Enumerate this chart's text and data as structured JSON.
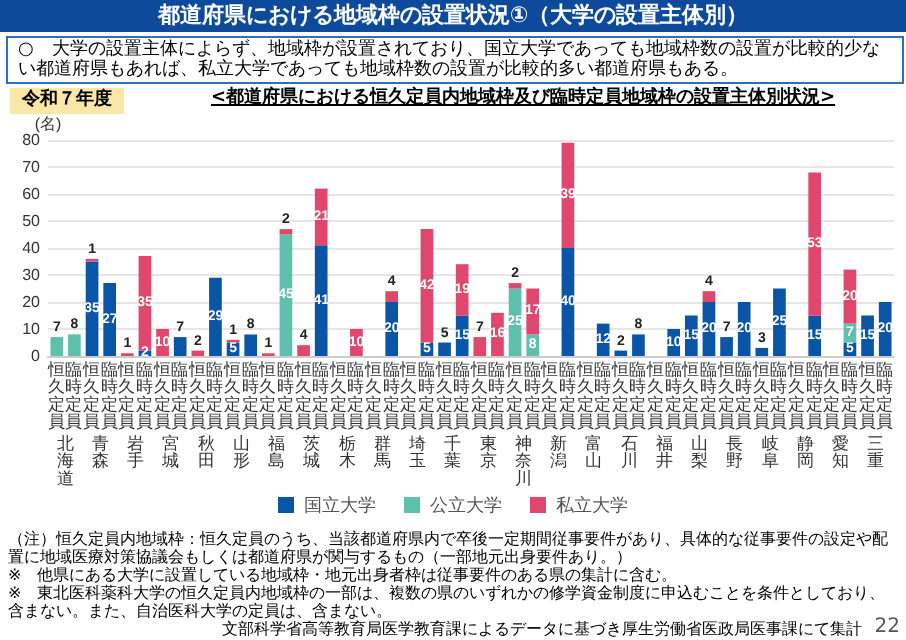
{
  "chart_data": {
    "type": "bar",
    "title": "都道府県における地域枠の設置状況①（大学の設置主体別）",
    "subtitle": "<都道府県における恒久定員内地域枠及び臨時定員地域枠の設置主体別状況>",
    "ylabel": "(名)",
    "categories": [
      "恒久定員",
      "臨時定員",
      "恒久定員",
      "臨時定員",
      "恒久定員",
      "臨時定員",
      "恒久定員",
      "臨時定員",
      "恒久定員",
      "臨時定員",
      "恒久定員",
      "臨時定員",
      "恒久定員",
      "臨時定員",
      "恒久定員",
      "臨時定員",
      "恒久定員",
      "臨時定員",
      "恒久定員",
      "臨時定員",
      "恒久定員",
      "臨時定員",
      "恒久定員",
      "臨時定員",
      "恒久定員",
      "臨時定員",
      "恒久定員",
      "臨時定員",
      "恒久定員",
      "臨時定員",
      "恒久定員",
      "臨時定員",
      "恒久定員",
      "臨時定員",
      "恒久定員",
      "臨時定員",
      "恒久定員",
      "臨時定員",
      "恒久定員",
      "臨時定員",
      "恒久定員",
      "臨時定員",
      "恒久定員",
      "臨時定員",
      "恒久定員",
      "臨時定員",
      "恒久定員",
      "臨時定員"
    ],
    "series": [
      {
        "name": "国立大学",
        "color": "#0b55a6",
        "values": [
          null,
          null,
          35,
          27,
          null,
          2,
          null,
          7,
          null,
          29,
          5,
          8,
          null,
          null,
          null,
          41,
          null,
          null,
          null,
          20,
          null,
          5,
          5,
          15,
          null,
          null,
          null,
          null,
          null,
          40,
          null,
          12,
          2,
          8,
          null,
          10,
          15,
          20,
          7,
          20,
          3,
          25,
          null,
          15,
          null,
          5,
          15,
          20
        ]
      },
      {
        "name": "公立大学",
        "color": "#5fbfad",
        "values": [
          7,
          8,
          null,
          null,
          null,
          null,
          null,
          null,
          null,
          null,
          null,
          null,
          null,
          45,
          null,
          null,
          null,
          null,
          null,
          null,
          null,
          null,
          null,
          null,
          null,
          null,
          25,
          8,
          null,
          null,
          null,
          null,
          null,
          null,
          null,
          null,
          null,
          null,
          null,
          null,
          null,
          null,
          null,
          null,
          null,
          7,
          null,
          null
        ]
      },
      {
        "name": "私立大学",
        "color": "#e0476d",
        "values": [
          null,
          null,
          1,
          null,
          1,
          35,
          10,
          null,
          2,
          null,
          1,
          null,
          1,
          2,
          4,
          21,
          null,
          10,
          null,
          4,
          null,
          42,
          null,
          19,
          7,
          16,
          2,
          17,
          null,
          39,
          null,
          null,
          null,
          null,
          null,
          null,
          null,
          4,
          null,
          null,
          null,
          null,
          null,
          53,
          null,
          20,
          null,
          null
        ]
      }
    ],
    "stacked": true,
    "data_labels": true,
    "ylim": [
      0,
      80
    ],
    "yticks": [
      0,
      10,
      20,
      30,
      40,
      50,
      60,
      70,
      80
    ],
    "grid": "y",
    "legend": "bottom",
    "annotations": [
      "北海道",
      "青森",
      "岩手",
      "宮城",
      "秋田",
      "山形",
      "福島",
      "茨城",
      "栃木",
      "群馬",
      "埼玉",
      "千葉",
      "東京",
      "神奈川",
      "新潟",
      "富山",
      "石川",
      "福井",
      "山梨",
      "長野",
      "岐阜",
      "静岡",
      "愛知",
      "三重",
      "○　大学の設置主体によらず、地域枠が設置されており、国立大学であっても地域枠数の設置が比較的少ない都道府県もあれば、私立大学であっても地域枠数の設置が比較的多い都道府県もある。",
      "令和７年度",
      "（注）恒久定員内地域枠：恒久定員のうち、当該都道府県内で卒後一定期間従事要件があり、具体的な従事要件の設定や配置に地域医療対策協議会もしくは都道府県が関与するもの（一部地元出身要件あり。）",
      "※　他県にある大学に設置している地域枠・地元出身者枠は従事要件のある県の集計に含む。",
      "※　東北医科薬科大学の恒久定員内地域枠の一部は、複数の県のいずれかの修学資金制度に申込むことを条件としており、含まない。また、自治医科大学の定員は、含まない。",
      "文部科学省高等教育局医学教育課によるデータに基づき厚生労働省医政局医事課にて集計",
      "22"
    ]
  }
}
